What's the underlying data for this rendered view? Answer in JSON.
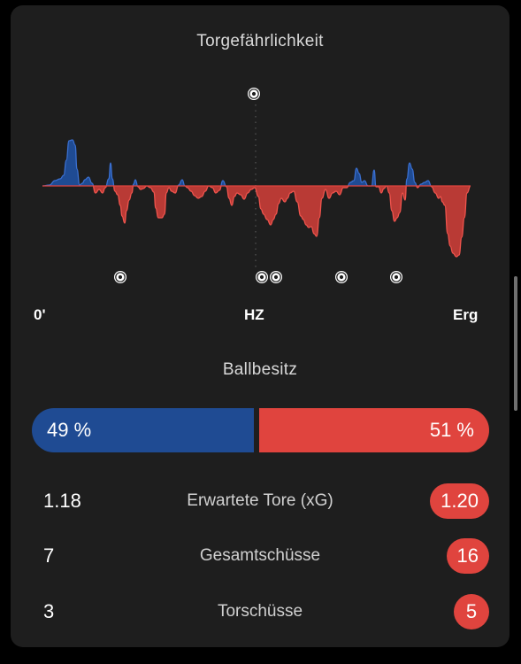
{
  "momentum": {
    "title": "Torgefährlichkeit",
    "timeline": {
      "start_label": "0'",
      "half_label": "HZ",
      "end_label": "Erg"
    },
    "home_color": "#1f4b93",
    "away_color": "#e0443e",
    "goal_icon": "soccer-ball-icon",
    "home_goals": 1,
    "away_goals": 5
  },
  "possession": {
    "title": "Ballbesitz",
    "home_percent": 49,
    "away_percent": 51,
    "home_label": "49 %",
    "away_label": "51 %"
  },
  "stats": [
    {
      "label": "Erwartete Tore (xG)",
      "home": "1.18",
      "away": "1.20"
    },
    {
      "label": "Gesamtschüsse",
      "home": "7",
      "away": "16"
    },
    {
      "label": "Torschüsse",
      "home": "3",
      "away": "5"
    }
  ]
}
